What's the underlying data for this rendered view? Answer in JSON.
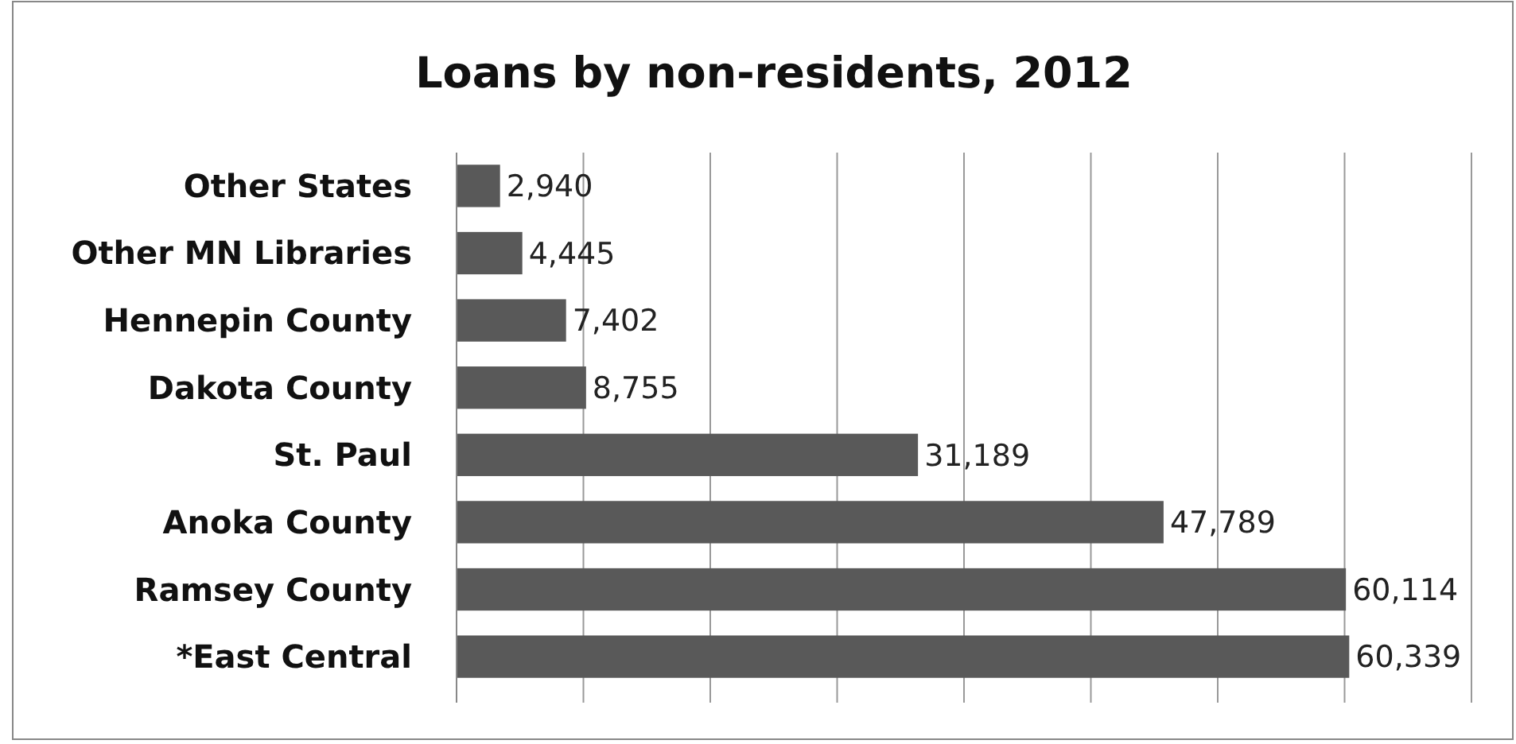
{
  "chart_data": {
    "type": "bar",
    "orientation": "horizontal",
    "title": "Loans by non-residents, 2012",
    "categories": [
      "Other States",
      "Other MN Libraries",
      "Hennepin County",
      "Dakota County",
      "St. Paul",
      "Anoka County",
      "Ramsey County",
      "*East Central"
    ],
    "values": [
      2940,
      4445,
      7402,
      8755,
      31189,
      47789,
      60114,
      60339
    ],
    "value_labels": [
      "2,940",
      "4,445",
      "7,402",
      "8,755",
      "31,189",
      "47,789",
      "60,114",
      "60,339"
    ],
    "color": "#595959",
    "xlim": [
      0,
      68600
    ],
    "xticks": [
      {
        "value": 0,
        "label": null
      },
      {
        "value": 8575,
        "label": null
      },
      {
        "value": 17150,
        "label": null
      },
      {
        "value": 25725,
        "label": null
      },
      {
        "value": 34300,
        "label": null
      },
      {
        "value": 42875,
        "label": null
      },
      {
        "value": 51450,
        "label": null
      },
      {
        "value": 60025,
        "label": null
      },
      {
        "value": 68600,
        "label": null
      }
    ],
    "grid": "x"
  }
}
